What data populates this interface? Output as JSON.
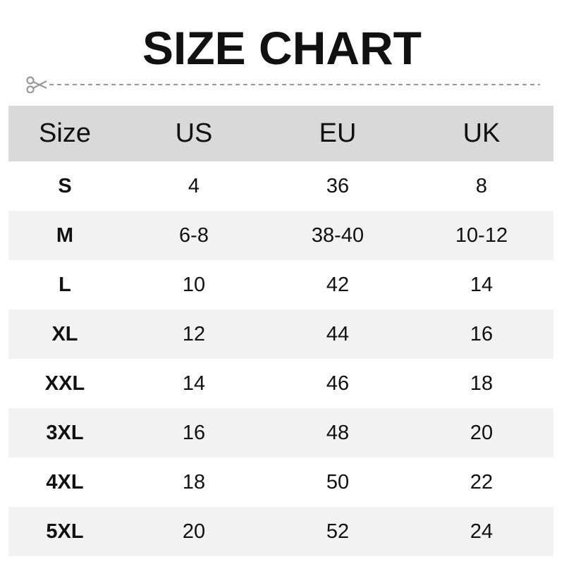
{
  "title": "SIZE CHART",
  "icons": {
    "cut": "scissors-icon"
  },
  "colors": {
    "header_bg": "#d9d9d9",
    "alt_row_bg": "#f2f2f2",
    "dash": "#999999"
  },
  "table": {
    "headers": [
      "Size",
      "US",
      "EU",
      "UK"
    ],
    "rows": [
      [
        "S",
        "4",
        "36",
        "8"
      ],
      [
        "M",
        "6-8",
        "38-40",
        "10-12"
      ],
      [
        "L",
        "10",
        "42",
        "14"
      ],
      [
        "XL",
        "12",
        "44",
        "16"
      ],
      [
        "XXL",
        "14",
        "46",
        "18"
      ],
      [
        "3XL",
        "16",
        "48",
        "20"
      ],
      [
        "4XL",
        "18",
        "50",
        "22"
      ],
      [
        "5XL",
        "20",
        "52",
        "24"
      ]
    ]
  }
}
